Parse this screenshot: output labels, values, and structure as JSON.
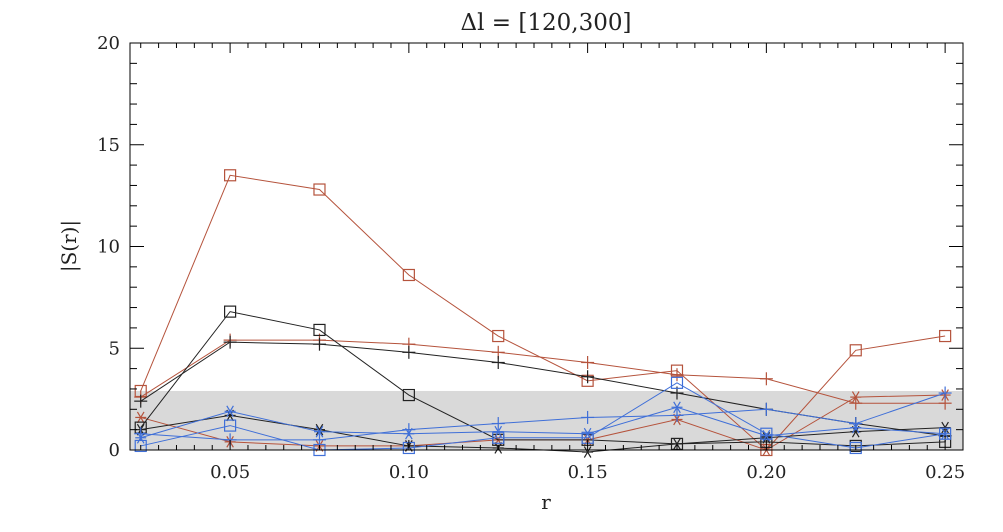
{
  "chart_data": {
    "type": "line",
    "title": "Δl  =  [120,300]",
    "xlabel": "r",
    "ylabel": "|S(r)|",
    "xlim": [
      0.022,
      0.255
    ],
    "ylim": [
      0,
      20
    ],
    "x_ticks": [
      0.05,
      0.1,
      0.15,
      0.2,
      0.25
    ],
    "x_tick_labels": [
      "0.05",
      "0.10",
      "0.15",
      "0.20",
      "0.25"
    ],
    "y_ticks": [
      0,
      5,
      10,
      15,
      20
    ],
    "y_tick_labels": [
      "0",
      "5",
      "10",
      "15",
      "20"
    ],
    "grid": false,
    "shaded_band": {
      "y0": 0,
      "y1": 2.9,
      "color": "#d9d9d9"
    },
    "x": [
      0.025,
      0.05,
      0.075,
      0.1,
      0.125,
      0.15,
      0.175,
      0.2,
      0.225,
      0.25
    ],
    "series": [
      {
        "color": "#b5533c",
        "marker": "square",
        "values": [
          2.9,
          13.5,
          12.8,
          8.6,
          5.6,
          3.4,
          3.9,
          0.0,
          4.9,
          5.6
        ]
      },
      {
        "color": "#b5533c",
        "marker": "plus",
        "values": [
          2.6,
          5.4,
          5.4,
          5.2,
          4.8,
          4.3,
          3.7,
          3.5,
          2.3,
          2.3
        ]
      },
      {
        "color": "#b5533c",
        "marker": "asterisk",
        "values": [
          1.6,
          0.4,
          0.2,
          0.2,
          0.5,
          0.5,
          1.5,
          0.0,
          2.6,
          2.7
        ]
      },
      {
        "color": "#222222",
        "marker": "square",
        "values": [
          1.1,
          6.8,
          5.9,
          2.7,
          0.5,
          0.5,
          0.3,
          0.4,
          0.2,
          0.4
        ]
      },
      {
        "color": "#222222",
        "marker": "plus",
        "values": [
          2.4,
          5.3,
          5.2,
          4.8,
          4.3,
          3.6,
          2.8,
          2.0,
          1.3,
          0.7
        ]
      },
      {
        "color": "#222222",
        "marker": "asterisk",
        "values": [
          1.0,
          1.7,
          1.0,
          0.2,
          0.1,
          -0.1,
          0.3,
          0.6,
          0.9,
          1.1
        ]
      },
      {
        "color": "#3f6fd8",
        "marker": "square",
        "values": [
          0.2,
          1.2,
          0.0,
          0.1,
          0.6,
          0.6,
          3.3,
          0.8,
          0.1,
          0.8
        ]
      },
      {
        "color": "#3f6fd8",
        "marker": "plus",
        "values": [
          0.8,
          0.5,
          0.5,
          1.0,
          1.3,
          1.6,
          1.7,
          2.0,
          1.3,
          2.8
        ]
      },
      {
        "color": "#3f6fd8",
        "marker": "asterisk",
        "values": [
          0.6,
          1.9,
          0.9,
          0.8,
          0.9,
          0.8,
          2.1,
          0.7,
          1.1,
          0.8
        ]
      }
    ]
  }
}
